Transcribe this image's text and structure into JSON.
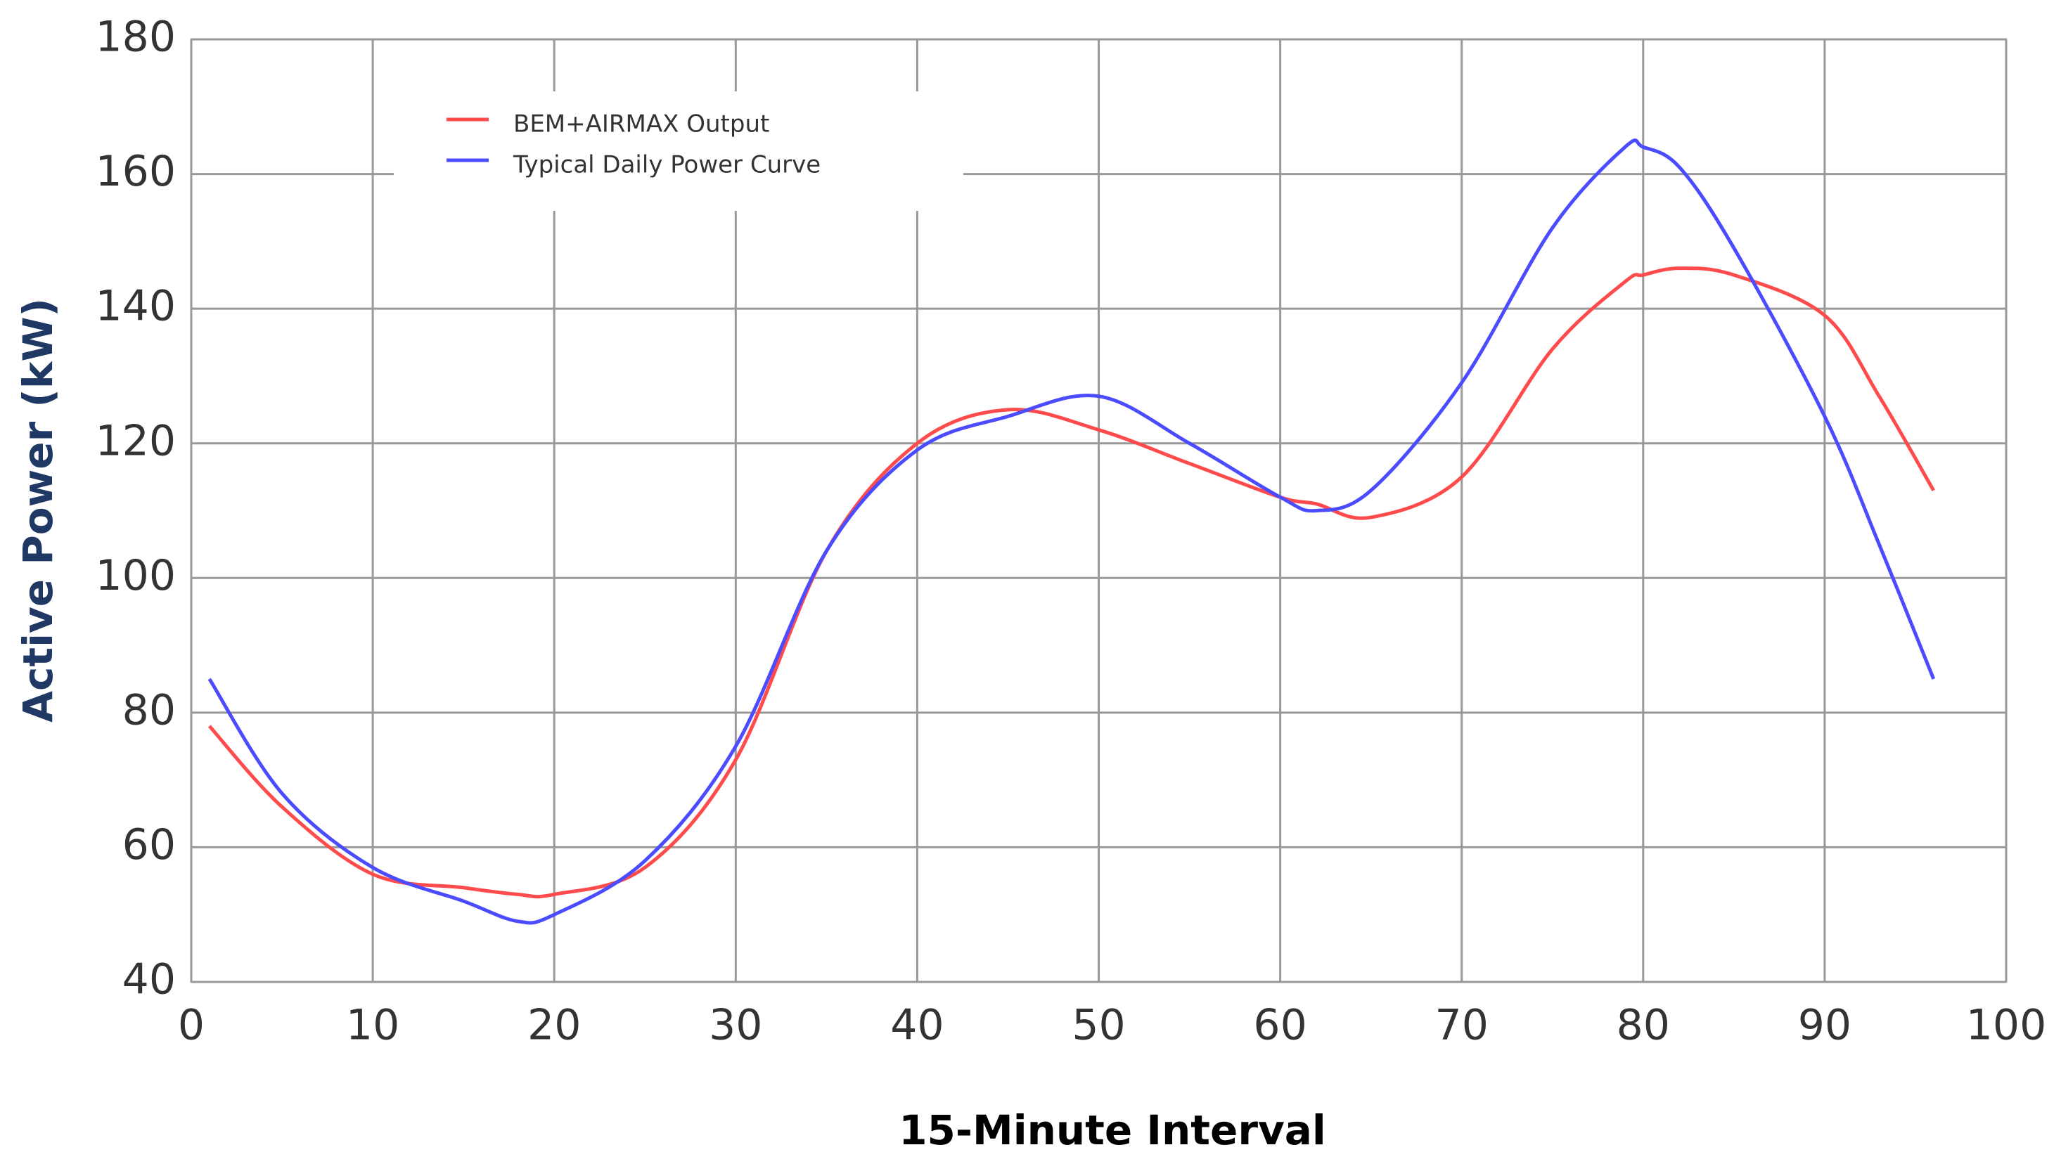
{
  "chart_data": {
    "type": "line",
    "x_label": "15-Minute Interval",
    "y_label": "Active Power (kW)",
    "x": [
      1,
      5,
      10,
      15,
      18,
      20,
      25,
      30,
      35,
      40,
      45,
      50,
      55,
      60,
      62,
      65,
      70,
      75,
      79,
      80,
      82,
      85,
      90,
      93,
      96
    ],
    "series": [
      {
        "name": "BEM+AIRMAX Output",
        "color": "#ff4b4b",
        "values": [
          78,
          66,
          56,
          54,
          53,
          53,
          57,
          73,
          104,
          120,
          125,
          122,
          117,
          112,
          111,
          109,
          115,
          134,
          144,
          145,
          146,
          145,
          139,
          127,
          113
        ]
      },
      {
        "name": "Typical Daily Power Curve",
        "color": "#4b4bff",
        "values": [
          85,
          68,
          57,
          52,
          49,
          50,
          58,
          75,
          104,
          119,
          124,
          127,
          120,
          112,
          110,
          113,
          129,
          152,
          164,
          164,
          161,
          149,
          124,
          105,
          85
        ]
      }
    ],
    "xlim": [
      0,
      100
    ],
    "xticks": [
      0,
      10,
      20,
      30,
      40,
      50,
      60,
      70,
      80,
      90,
      100
    ],
    "ylim": [
      40,
      180
    ],
    "yticks": [
      40,
      60,
      80,
      100,
      120,
      140,
      160,
      180
    ],
    "grid": true,
    "legend": "upper left"
  }
}
